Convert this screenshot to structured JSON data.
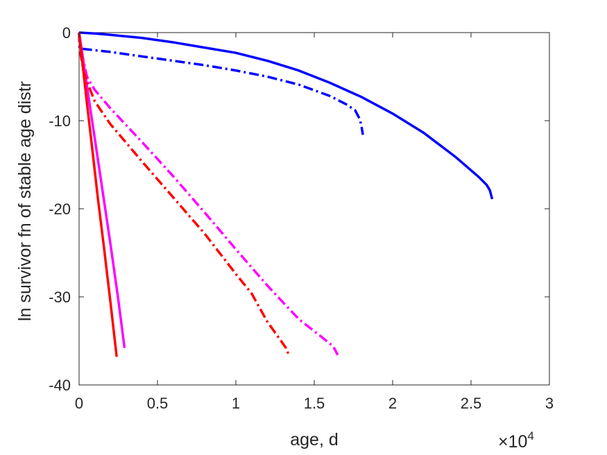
{
  "chart_data": {
    "type": "line",
    "title": "",
    "xlabel": "age, d",
    "ylabel": "ln survivor fn of stable age distr",
    "x_exponent_label": "×10",
    "x_exponent_power": "4",
    "xlim": [
      0,
      30000
    ],
    "ylim": [
      -40,
      0
    ],
    "x_tick_labels": [
      "0",
      "0.5",
      "1",
      "1.5",
      "2",
      "2.5",
      "3"
    ],
    "x_tick_values": [
      0,
      5000,
      10000,
      15000,
      20000,
      25000,
      30000
    ],
    "y_tick_labels": [
      "0",
      "-10",
      "-20",
      "-30",
      "-40"
    ],
    "y_tick_values": [
      0,
      -10,
      -20,
      -30,
      -40
    ],
    "grid": false,
    "box": true,
    "series": [
      {
        "color": "#0000ff",
        "style": "solid",
        "x": [
          0,
          1000,
          2000,
          4000,
          6000,
          8000,
          10000,
          12000,
          14000,
          16000,
          18000,
          20000,
          22000,
          24000,
          25500,
          26000,
          26200,
          26350
        ],
        "y": [
          0,
          -0.1,
          -0.25,
          -0.6,
          -1.1,
          -1.7,
          -2.3,
          -3.2,
          -4.3,
          -5.7,
          -7.3,
          -9.2,
          -11.4,
          -14.1,
          -16.4,
          -17.3,
          -17.9,
          -18.9
        ]
      },
      {
        "color": "#0000ff",
        "style": "dashdot",
        "x": [
          0,
          30,
          500,
          2000,
          4000,
          6000,
          8000,
          10000,
          12000,
          14000,
          16000,
          17000,
          17600,
          17900,
          18000,
          18100
        ],
        "y": [
          0,
          -1.8,
          -1.9,
          -2.2,
          -2.7,
          -3.2,
          -3.7,
          -4.3,
          -5.0,
          -5.9,
          -7.2,
          -8.1,
          -8.8,
          -9.8,
          -10.5,
          -11.6
        ]
      },
      {
        "color": "#ff00ff",
        "style": "solid",
        "x": [
          0,
          300,
          600,
          1000,
          1500,
          2000,
          2500,
          2900
        ],
        "y": [
          0,
          -3.6,
          -7.3,
          -12.0,
          -18.0,
          -24.0,
          -30.3,
          -35.8
        ]
      },
      {
        "color": "#ff00ff",
        "style": "dashdot",
        "x": [
          0,
          200,
          500,
          1000,
          2000,
          4000,
          6000,
          8000,
          10000,
          12000,
          14000,
          15500,
          16200,
          16500
        ],
        "y": [
          0,
          -2.5,
          -5.0,
          -6.5,
          -8.6,
          -12.4,
          -16.3,
          -20.4,
          -24.6,
          -28.7,
          -32.5,
          -34.6,
          -35.6,
          -36.6
        ]
      },
      {
        "color": "#ff0000",
        "style": "solid",
        "x": [
          0,
          200,
          500,
          800,
          1200,
          1600,
          2000,
          2400
        ],
        "y": [
          0,
          -3.2,
          -8.0,
          -12.6,
          -18.8,
          -24.6,
          -30.6,
          -36.8
        ]
      },
      {
        "color": "#ff0000",
        "style": "dashdot",
        "x": [
          0,
          100,
          300,
          600,
          1000,
          2000,
          4000,
          6000,
          8000,
          10000,
          11000,
          12000,
          12800,
          13200,
          13400
        ],
        "y": [
          0,
          -2.5,
          -4.5,
          -6.0,
          -7.8,
          -10.4,
          -14.6,
          -18.7,
          -22.8,
          -27.4,
          -29.6,
          -32.8,
          -34.8,
          -35.8,
          -36.7
        ]
      }
    ]
  }
}
